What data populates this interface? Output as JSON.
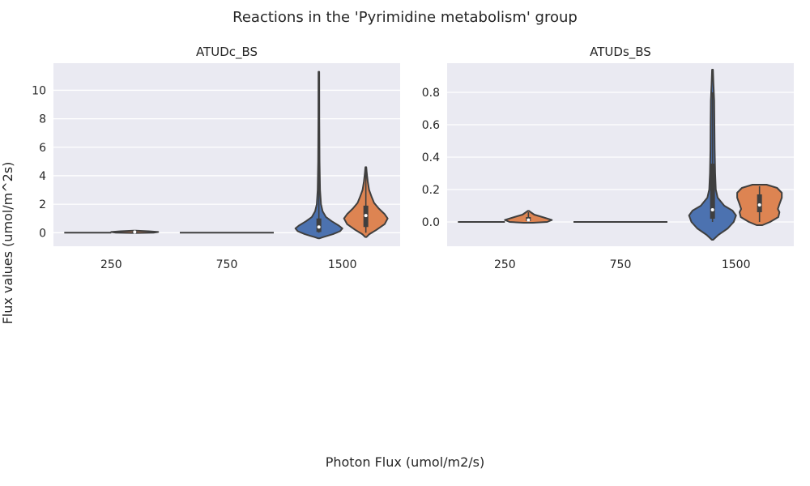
{
  "chart_data": {
    "type": "violin",
    "title": "Reactions in the 'Pyrimidine metabolism' group",
    "xlabel": "Photon Flux (umol/m2/s)",
    "ylabel": "Flux values (umol/m^2s)",
    "grid": true,
    "series_colors": [
      "#4c72b0",
      "#dd8452"
    ],
    "panels": [
      {
        "title": "ATUDc_BS",
        "categories": [
          "250",
          "750",
          "1500"
        ],
        "ylim": [
          -0.95,
          11.9
        ],
        "yticks": [
          0,
          2,
          4,
          6,
          8,
          10
        ],
        "ytick_labels": [
          "0",
          "2",
          "4",
          "6",
          "8",
          "10"
        ],
        "violins": [
          {
            "category": "250",
            "series": 0,
            "min": 0.0,
            "max": 0.0,
            "q1": 0.0,
            "median": 0.0,
            "q3": 0.0,
            "profile": [
              [
                0.0,
                1.0
              ]
            ]
          },
          {
            "category": "250",
            "series": 1,
            "min": 0.0,
            "max": 0.1,
            "q1": 0.0,
            "median": 0.05,
            "q3": 0.08,
            "profile": [
              [
                -0.02,
                0.1
              ],
              [
                0.0,
                0.8
              ],
              [
                0.05,
                1.0
              ],
              [
                0.1,
                0.6
              ],
              [
                0.14,
                0.05
              ]
            ]
          },
          {
            "category": "750",
            "series": 0,
            "min": 0.0,
            "max": 0.0,
            "q1": 0.0,
            "median": 0.0,
            "q3": 0.0,
            "profile": [
              [
                0.0,
                1.0
              ]
            ]
          },
          {
            "category": "750",
            "series": 1,
            "min": 0.0,
            "max": 0.0,
            "q1": 0.0,
            "median": 0.0,
            "q3": 0.0,
            "profile": [
              [
                0.0,
                1.0
              ]
            ]
          },
          {
            "category": "1500",
            "series": 0,
            "min": 0.0,
            "max": 11.3,
            "q1": 0.05,
            "median": 0.4,
            "q3": 1.0,
            "profile": [
              [
                -0.4,
                0.02
              ],
              [
                -0.3,
                0.2
              ],
              [
                -0.1,
                0.6
              ],
              [
                0.1,
                0.9
              ],
              [
                0.3,
                1.0
              ],
              [
                0.5,
                0.85
              ],
              [
                0.8,
                0.55
              ],
              [
                1.1,
                0.3
              ],
              [
                1.5,
                0.16
              ],
              [
                2.0,
                0.09
              ],
              [
                3.0,
                0.05
              ],
              [
                5.0,
                0.03
              ],
              [
                8.0,
                0.02
              ],
              [
                11.3,
                0.015
              ]
            ]
          },
          {
            "category": "1500",
            "series": 1,
            "min": 0.0,
            "max": 4.5,
            "q1": 0.4,
            "median": 1.2,
            "q3": 1.9,
            "profile": [
              [
                -0.3,
                0.03
              ],
              [
                -0.1,
                0.15
              ],
              [
                0.2,
                0.45
              ],
              [
                0.6,
                0.8
              ],
              [
                1.0,
                0.93
              ],
              [
                1.3,
                0.8
              ],
              [
                1.7,
                0.55
              ],
              [
                2.1,
                0.35
              ],
              [
                2.5,
                0.25
              ],
              [
                3.0,
                0.14
              ],
              [
                3.6,
                0.08
              ],
              [
                4.2,
                0.04
              ],
              [
                4.6,
                0.02
              ]
            ]
          }
        ]
      },
      {
        "title": "ATUDs_BS",
        "categories": [
          "250",
          "750",
          "1500"
        ],
        "ylim": [
          -0.15,
          0.98
        ],
        "yticks": [
          0.0,
          0.2,
          0.4,
          0.6,
          0.8
        ],
        "ytick_labels": [
          "0.0",
          "0.2",
          "0.4",
          "0.6",
          "0.8"
        ],
        "violins": [
          {
            "category": "250",
            "series": 0,
            "min": 0.0,
            "max": 0.0,
            "q1": 0.0,
            "median": 0.0,
            "q3": 0.0,
            "profile": [
              [
                0.0,
                1.0
              ]
            ]
          },
          {
            "category": "250",
            "series": 1,
            "min": 0.0,
            "max": 0.06,
            "q1": 0.005,
            "median": 0.012,
            "q3": 0.03,
            "profile": [
              [
                -0.005,
                0.2
              ],
              [
                0.0,
                0.8
              ],
              [
                0.012,
                1.0
              ],
              [
                0.03,
                0.6
              ],
              [
                0.045,
                0.25
              ],
              [
                0.06,
                0.1
              ],
              [
                0.068,
                0.03
              ]
            ]
          },
          {
            "category": "750",
            "series": 0,
            "min": 0.0,
            "max": 0.0,
            "q1": 0.0,
            "median": 0.0,
            "q3": 0.0,
            "profile": [
              [
                0.0,
                1.0
              ]
            ]
          },
          {
            "category": "750",
            "series": 1,
            "min": 0.0,
            "max": 0.0,
            "q1": 0.0,
            "median": 0.0,
            "q3": 0.0,
            "profile": [
              [
                0.0,
                1.0
              ]
            ]
          },
          {
            "category": "1500",
            "series": 0,
            "min": 0.0,
            "max": 0.8,
            "q1": 0.02,
            "median": 0.075,
            "q3": 0.36,
            "profile": [
              [
                -0.11,
                0.03
              ],
              [
                -0.08,
                0.25
              ],
              [
                -0.04,
                0.65
              ],
              [
                0.0,
                0.9
              ],
              [
                0.04,
                1.0
              ],
              [
                0.07,
                0.85
              ],
              [
                0.1,
                0.5
              ],
              [
                0.15,
                0.22
              ],
              [
                0.2,
                0.14
              ],
              [
                0.3,
                0.11
              ],
              [
                0.45,
                0.09
              ],
              [
                0.6,
                0.08
              ],
              [
                0.75,
                0.07
              ],
              [
                0.85,
                0.04
              ],
              [
                0.94,
                0.02
              ]
            ]
          },
          {
            "category": "1500",
            "series": 1,
            "min": 0.0,
            "max": 0.22,
            "q1": 0.06,
            "median": 0.105,
            "q3": 0.17,
            "profile": [
              [
                -0.02,
                0.12
              ],
              [
                0.0,
                0.45
              ],
              [
                0.03,
                0.8
              ],
              [
                0.06,
                0.85
              ],
              [
                0.08,
                0.78
              ],
              [
                0.11,
                0.85
              ],
              [
                0.15,
                0.95
              ],
              [
                0.18,
                0.95
              ],
              [
                0.21,
                0.75
              ],
              [
                0.23,
                0.3
              ]
            ]
          }
        ]
      }
    ]
  }
}
